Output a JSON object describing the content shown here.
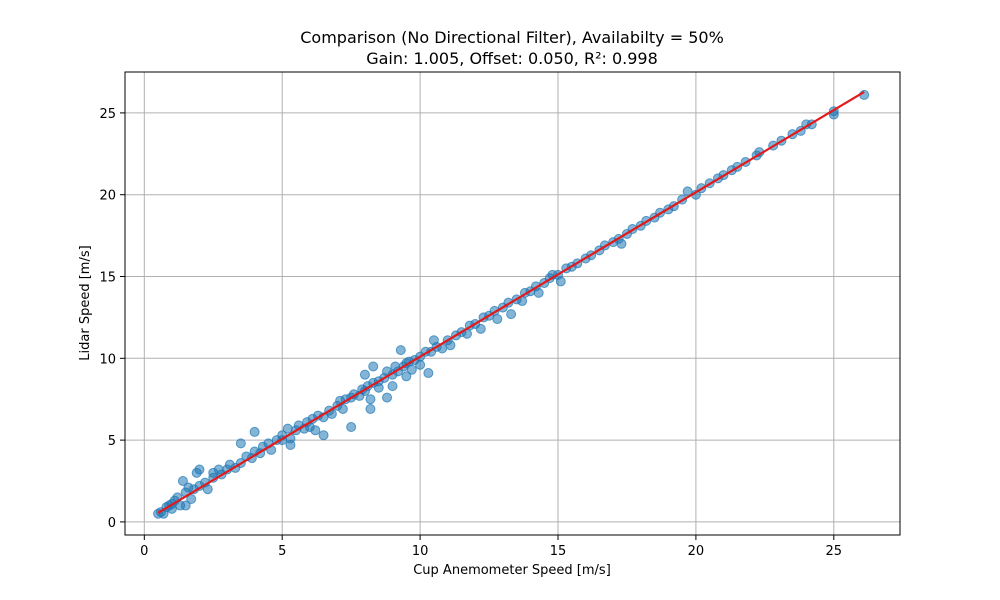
{
  "chart_data": {
    "type": "scatter",
    "title": "Comparison (No Directional Filter), Availabilty = 50%",
    "subtitle": "Gain: 1.005, Offset: 0.050, R²: 0.998",
    "xlabel": "Cup Anemometer Speed [m/s]",
    "ylabel": "Lidar Speed [m/s]",
    "xlim": [
      -0.7,
      27.4
    ],
    "ylim": [
      -0.8,
      27.5
    ],
    "xticks": [
      0,
      5,
      10,
      15,
      20,
      25
    ],
    "yticks": [
      0,
      5,
      10,
      15,
      20,
      25
    ],
    "grid": true,
    "marker_color": "#1f77b4",
    "fit_line_color": "#e31a1c",
    "fit": {
      "gain": 1.005,
      "offset": 0.05,
      "x_range": [
        0.5,
        26.1
      ]
    },
    "points": [
      [
        0.5,
        0.5
      ],
      [
        0.6,
        0.6
      ],
      [
        0.7,
        0.5
      ],
      [
        0.8,
        0.9
      ],
      [
        0.9,
        1.0
      ],
      [
        1.0,
        1.1
      ],
      [
        1.0,
        0.8
      ],
      [
        1.1,
        1.3
      ],
      [
        1.2,
        1.5
      ],
      [
        1.3,
        1.0
      ],
      [
        1.4,
        2.5
      ],
      [
        1.5,
        1.8
      ],
      [
        1.5,
        1.0
      ],
      [
        1.6,
        2.1
      ],
      [
        1.7,
        1.4
      ],
      [
        1.8,
        2.0
      ],
      [
        1.9,
        3.0
      ],
      [
        2.0,
        2.2
      ],
      [
        2.0,
        3.2
      ],
      [
        2.2,
        2.4
      ],
      [
        2.3,
        2.0
      ],
      [
        2.5,
        3.0
      ],
      [
        2.5,
        2.7
      ],
      [
        2.7,
        3.2
      ],
      [
        2.8,
        2.9
      ],
      [
        3.0,
        3.2
      ],
      [
        3.1,
        3.5
      ],
      [
        3.3,
        3.3
      ],
      [
        3.5,
        3.6
      ],
      [
        3.5,
        4.8
      ],
      [
        3.7,
        4.0
      ],
      [
        3.9,
        3.9
      ],
      [
        4.0,
        4.3
      ],
      [
        4.0,
        5.5
      ],
      [
        4.2,
        4.2
      ],
      [
        4.3,
        4.6
      ],
      [
        4.5,
        4.8
      ],
      [
        4.6,
        4.4
      ],
      [
        4.8,
        5.0
      ],
      [
        5.0,
        5.0
      ],
      [
        5.0,
        5.3
      ],
      [
        5.2,
        5.7
      ],
      [
        5.3,
        5.1
      ],
      [
        5.3,
        4.7
      ],
      [
        5.5,
        5.6
      ],
      [
        5.6,
        5.9
      ],
      [
        5.8,
        5.7
      ],
      [
        5.9,
        6.1
      ],
      [
        6.0,
        5.8
      ],
      [
        6.1,
        6.3
      ],
      [
        6.2,
        5.6
      ],
      [
        6.3,
        6.5
      ],
      [
        6.5,
        6.4
      ],
      [
        6.5,
        5.3
      ],
      [
        6.7,
        6.8
      ],
      [
        6.8,
        6.6
      ],
      [
        7.0,
        7.1
      ],
      [
        7.1,
        7.4
      ],
      [
        7.2,
        6.9
      ],
      [
        7.3,
        7.5
      ],
      [
        7.5,
        7.6
      ],
      [
        7.5,
        5.8
      ],
      [
        7.6,
        7.8
      ],
      [
        7.8,
        7.7
      ],
      [
        7.9,
        8.1
      ],
      [
        8.0,
        8.0
      ],
      [
        8.0,
        9.0
      ],
      [
        8.1,
        8.3
      ],
      [
        8.2,
        7.5
      ],
      [
        8.2,
        6.9
      ],
      [
        8.3,
        8.5
      ],
      [
        8.3,
        9.5
      ],
      [
        8.5,
        8.6
      ],
      [
        8.5,
        8.2
      ],
      [
        8.7,
        8.8
      ],
      [
        8.8,
        9.2
      ],
      [
        8.8,
        7.6
      ],
      [
        9.0,
        9.0
      ],
      [
        9.0,
        8.3
      ],
      [
        9.1,
        9.5
      ],
      [
        9.2,
        9.2
      ],
      [
        9.3,
        10.5
      ],
      [
        9.4,
        9.5
      ],
      [
        9.5,
        9.7
      ],
      [
        9.5,
        8.9
      ],
      [
        9.6,
        9.8
      ],
      [
        9.7,
        9.3
      ],
      [
        9.8,
        9.9
      ],
      [
        10.0,
        10.1
      ],
      [
        10.0,
        9.6
      ],
      [
        10.2,
        10.4
      ],
      [
        10.3,
        9.1
      ],
      [
        10.4,
        10.4
      ],
      [
        10.5,
        11.1
      ],
      [
        10.6,
        10.7
      ],
      [
        10.8,
        10.6
      ],
      [
        11.0,
        11.1
      ],
      [
        11.1,
        10.8
      ],
      [
        11.3,
        11.4
      ],
      [
        11.5,
        11.6
      ],
      [
        11.7,
        11.5
      ],
      [
        11.8,
        12.0
      ],
      [
        12.0,
        12.1
      ],
      [
        12.2,
        11.8
      ],
      [
        12.3,
        12.5
      ],
      [
        12.5,
        12.6
      ],
      [
        12.7,
        12.9
      ],
      [
        12.8,
        12.4
      ],
      [
        13.0,
        13.1
      ],
      [
        13.2,
        13.4
      ],
      [
        13.3,
        12.7
      ],
      [
        13.5,
        13.6
      ],
      [
        13.7,
        13.5
      ],
      [
        13.8,
        14.0
      ],
      [
        14.0,
        14.1
      ],
      [
        14.2,
        14.4
      ],
      [
        14.3,
        14.0
      ],
      [
        14.5,
        14.6
      ],
      [
        14.7,
        14.9
      ],
      [
        14.8,
        15.1
      ],
      [
        15.0,
        15.1
      ],
      [
        15.1,
        14.7
      ],
      [
        15.3,
        15.5
      ],
      [
        15.5,
        15.6
      ],
      [
        15.7,
        15.8
      ],
      [
        16.0,
        16.1
      ],
      [
        16.2,
        16.3
      ],
      [
        16.5,
        16.6
      ],
      [
        16.7,
        16.9
      ],
      [
        17.0,
        17.1
      ],
      [
        17.2,
        17.3
      ],
      [
        17.3,
        17.0
      ],
      [
        17.5,
        17.6
      ],
      [
        17.7,
        17.9
      ],
      [
        18.0,
        18.1
      ],
      [
        18.2,
        18.4
      ],
      [
        18.5,
        18.6
      ],
      [
        18.7,
        18.9
      ],
      [
        19.0,
        19.1
      ],
      [
        19.2,
        19.3
      ],
      [
        19.5,
        19.7
      ],
      [
        19.7,
        20.2
      ],
      [
        20.0,
        20.0
      ],
      [
        20.2,
        20.4
      ],
      [
        20.5,
        20.7
      ],
      [
        20.8,
        21.0
      ],
      [
        21.0,
        21.2
      ],
      [
        21.3,
        21.5
      ],
      [
        21.5,
        21.7
      ],
      [
        21.8,
        22.0
      ],
      [
        22.2,
        22.4
      ],
      [
        22.3,
        22.6
      ],
      [
        22.8,
        23.0
      ],
      [
        23.1,
        23.3
      ],
      [
        23.5,
        23.7
      ],
      [
        23.8,
        23.9
      ],
      [
        24.0,
        24.3
      ],
      [
        24.2,
        24.3
      ],
      [
        25.0,
        24.9
      ],
      [
        25.0,
        25.1
      ],
      [
        26.1,
        26.1
      ]
    ]
  }
}
